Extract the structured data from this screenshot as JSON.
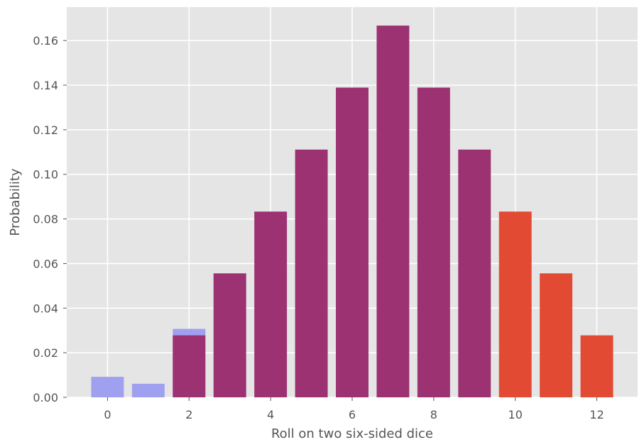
{
  "chart_data": {
    "type": "bar",
    "title": "",
    "xlabel": "Roll on two six-sided dice",
    "ylabel": "Probability",
    "xlim": [
      -1,
      13
    ],
    "ylim": [
      0,
      0.175
    ],
    "xticks": [
      0,
      2,
      4,
      6,
      8,
      10,
      12
    ],
    "yticks": [
      0.0,
      0.02,
      0.04,
      0.06,
      0.08,
      0.1,
      0.12,
      0.14,
      0.16
    ],
    "grid": true,
    "style": "ggplot",
    "background_color": "#E5E5E5",
    "series": [
      {
        "color": "#A0A0F0",
        "x": [
          0,
          1,
          2
        ],
        "values": [
          0.0092,
          0.0061,
          0.0307
        ]
      },
      {
        "color": "#9C3271",
        "x": [
          2,
          3,
          4,
          5,
          6,
          7,
          8,
          9
        ],
        "values": [
          0.0278,
          0.0556,
          0.0833,
          0.1111,
          0.1389,
          0.1667,
          0.1389,
          0.1111
        ]
      },
      {
        "color": "#E24A33",
        "x": [
          10,
          11,
          12
        ],
        "values": [
          0.0833,
          0.0556,
          0.0278
        ]
      }
    ]
  }
}
